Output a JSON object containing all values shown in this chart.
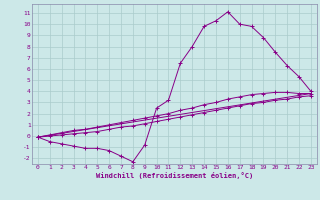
{
  "xlabel": "Windchill (Refroidissement éolien,°C)",
  "bg_color": "#cce8e8",
  "grid_color": "#aacccc",
  "line_color": "#880088",
  "ylim": [
    -2.5,
    11.8
  ],
  "xlim": [
    -0.5,
    23.5
  ],
  "yticks": [
    -2,
    -1,
    0,
    1,
    2,
    3,
    4,
    5,
    6,
    7,
    8,
    9,
    10,
    11
  ],
  "xticks": [
    0,
    1,
    2,
    3,
    4,
    5,
    6,
    7,
    8,
    9,
    10,
    11,
    12,
    13,
    14,
    15,
    16,
    17,
    18,
    19,
    20,
    21,
    22,
    23
  ],
  "line1_x": [
    0,
    1,
    2,
    3,
    4,
    5,
    6,
    7,
    8,
    9,
    10,
    11,
    12,
    13,
    14,
    15,
    16,
    17,
    18,
    19,
    20,
    21,
    22,
    23
  ],
  "line1_y": [
    -0.1,
    -0.5,
    -0.7,
    -0.9,
    -1.1,
    -1.1,
    -1.3,
    -1.8,
    -2.3,
    -0.8,
    2.5,
    3.2,
    6.5,
    8.0,
    9.8,
    10.3,
    11.1,
    10.0,
    9.8,
    8.8,
    7.5,
    6.3,
    5.3,
    4.0
  ],
  "line2_x": [
    0,
    23
  ],
  "line2_y": [
    -0.1,
    3.8
  ],
  "line3_x": [
    0,
    1,
    2,
    3,
    4,
    5,
    6,
    7,
    8,
    9,
    10,
    11,
    12,
    13,
    14,
    15,
    16,
    17,
    18,
    19,
    20,
    21,
    22,
    23
  ],
  "line3_y": [
    -0.1,
    0.1,
    0.3,
    0.5,
    0.6,
    0.8,
    1.0,
    1.2,
    1.4,
    1.6,
    1.8,
    2.0,
    2.3,
    2.5,
    2.8,
    3.0,
    3.3,
    3.5,
    3.7,
    3.8,
    3.9,
    3.9,
    3.8,
    3.8
  ],
  "line4_x": [
    0,
    1,
    2,
    3,
    4,
    5,
    6,
    7,
    8,
    9,
    10,
    11,
    12,
    13,
    14,
    15,
    16,
    17,
    18,
    19,
    20,
    21,
    22,
    23
  ],
  "line4_y": [
    -0.1,
    0.0,
    0.1,
    0.2,
    0.3,
    0.4,
    0.6,
    0.8,
    0.9,
    1.1,
    1.3,
    1.5,
    1.7,
    1.9,
    2.1,
    2.3,
    2.5,
    2.7,
    2.9,
    3.0,
    3.2,
    3.3,
    3.5,
    3.6
  ]
}
